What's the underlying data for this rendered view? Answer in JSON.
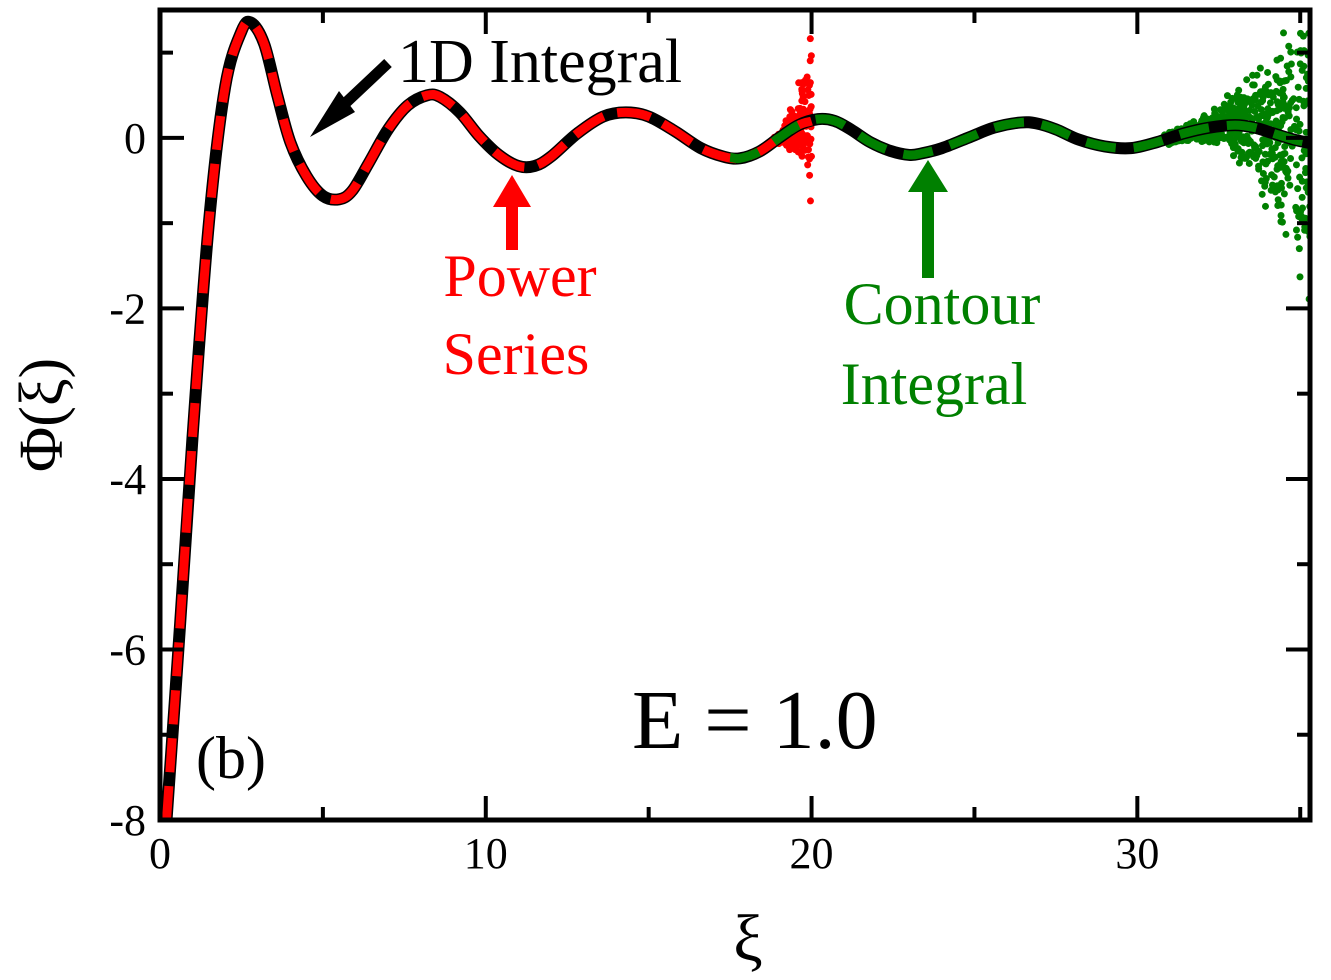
{
  "chart_data": {
    "type": "line",
    "panel_label": "(b)",
    "annotation_energy": "E = 1.0",
    "xlabel": "ξ",
    "ylabel": "Φ(ξ)",
    "xlim": [
      0,
      35.3
    ],
    "ylim": [
      -8,
      1.5
    ],
    "x_ticks": [
      0,
      10,
      20,
      30
    ],
    "x_tick_labels": [
      "0",
      "10",
      "20",
      "30"
    ],
    "y_ticks": [
      0,
      -2,
      -4,
      -6,
      -8
    ],
    "y_tick_labels": [
      "0",
      "-2",
      "-4",
      "-6",
      "-8"
    ],
    "grid": false,
    "curve_x": [
      0.2,
      0.6,
      1.0,
      1.5,
      2.0,
      2.5,
      2.8,
      3.2,
      3.6,
      4.0,
      4.5,
      5.0,
      5.5,
      5.9,
      6.4,
      7.0,
      7.6,
      8.2,
      8.6,
      9.2,
      9.8,
      10.4,
      11.0,
      11.5,
      12.0,
      12.8,
      13.6,
      14.3,
      15.0,
      15.8,
      16.6,
      17.3,
      17.8,
      18.4,
      19.0,
      19.6,
      20.2,
      20.7,
      21.2,
      21.8,
      22.4,
      23.0,
      23.4,
      24.0,
      24.8,
      25.6,
      26.4,
      26.9,
      27.5,
      28.2,
      29.0,
      29.8,
      30.6,
      31.4,
      32.2,
      33.0,
      33.6,
      34.2,
      34.8,
      35.3
    ],
    "curve_y": [
      -8.0,
      -5.8,
      -3.5,
      -1.0,
      0.6,
      1.25,
      1.35,
      1.1,
      0.5,
      -0.05,
      -0.45,
      -0.68,
      -0.72,
      -0.62,
      -0.3,
      0.1,
      0.38,
      0.5,
      0.48,
      0.3,
      0.02,
      -0.2,
      -0.33,
      -0.33,
      -0.22,
      0.05,
      0.25,
      0.3,
      0.25,
      0.08,
      -0.12,
      -0.22,
      -0.24,
      -0.16,
      0.0,
      0.15,
      0.22,
      0.2,
      0.1,
      -0.05,
      -0.15,
      -0.2,
      -0.18,
      -0.12,
      0.0,
      0.12,
      0.18,
      0.17,
      0.1,
      -0.02,
      -0.1,
      -0.12,
      -0.05,
      0.05,
      0.12,
      0.15,
      0.12,
      0.05,
      -0.02,
      -0.06
    ],
    "series": [
      {
        "name": "1D Integral",
        "color": "#000000",
        "style": "solid",
        "x_range": [
          0.2,
          35.3
        ]
      },
      {
        "name": "Power Series",
        "color": "#ff0000",
        "style": "dashed",
        "x_range": [
          0.2,
          20.0
        ],
        "noise_x_range": [
          18.8,
          20.0
        ]
      },
      {
        "name": "Contour Integral",
        "color": "#008000",
        "style": "dashed",
        "x_range": [
          17.5,
          35.3
        ],
        "noise_x_range": [
          30.8,
          35.3
        ]
      }
    ],
    "annotations": [
      {
        "id": "one-d",
        "lines": [
          "1D Integral"
        ],
        "color": "#000000",
        "arrow_to": [
          4.4,
          0.1
        ]
      },
      {
        "id": "power",
        "lines": [
          "Power",
          "Series"
        ],
        "color": "#ff0000",
        "arrow_to": [
          10.6,
          -0.32
        ]
      },
      {
        "id": "contour",
        "lines": [
          "Contour",
          "Integral"
        ],
        "color": "#008000",
        "arrow_to": [
          23.2,
          -0.19
        ]
      }
    ]
  }
}
